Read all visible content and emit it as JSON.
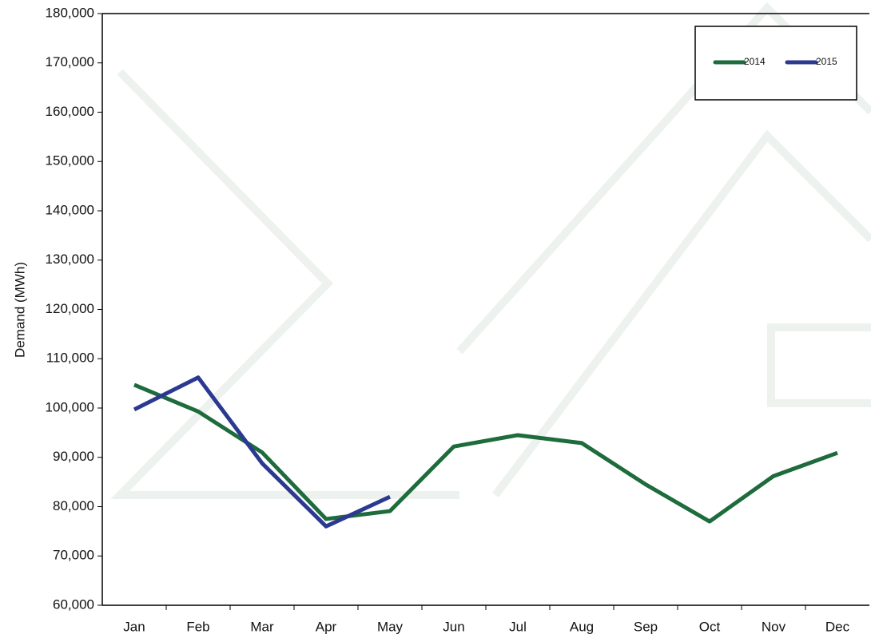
{
  "chart_data": {
    "type": "line",
    "y_label": "Demand (MWh)",
    "categories": [
      "Jan",
      "Feb",
      "Mar",
      "Apr",
      "May",
      "Jun",
      "Jul",
      "Aug",
      "Sep",
      "Oct",
      "Nov",
      "Dec"
    ],
    "series": [
      {
        "name": "2014",
        "color": "#1e6b3c",
        "values": [
          104700,
          99300,
          91000,
          77500,
          79100,
          92200,
          94500,
          92900,
          84500,
          77000,
          86200,
          90900
        ]
      },
      {
        "name": "2015",
        "color": "#2b3990",
        "values": [
          99700,
          106200,
          88800,
          76000,
          82000,
          null,
          null,
          null,
          null,
          null,
          null,
          null
        ]
      }
    ],
    "ylim": [
      60000,
      180000
    ],
    "yticks": [
      {
        "value": 60000,
        "label": "60,000"
      },
      {
        "value": 70000,
        "label": "70,000"
      },
      {
        "value": 80000,
        "label": "80,000"
      },
      {
        "value": 90000,
        "label": "90,000"
      },
      {
        "value": 100000,
        "label": "100,000"
      },
      {
        "value": 110000,
        "label": "110,000"
      },
      {
        "value": 120000,
        "label": "120,000"
      },
      {
        "value": 130000,
        "label": "130,000"
      },
      {
        "value": 140000,
        "label": "140,000"
      },
      {
        "value": 150000,
        "label": "150,000"
      },
      {
        "value": 160000,
        "label": "160,000"
      },
      {
        "value": 170000,
        "label": "170,000"
      },
      {
        "value": 180000,
        "label": "180,000"
      }
    ],
    "grid": false,
    "legend": "top-right"
  }
}
